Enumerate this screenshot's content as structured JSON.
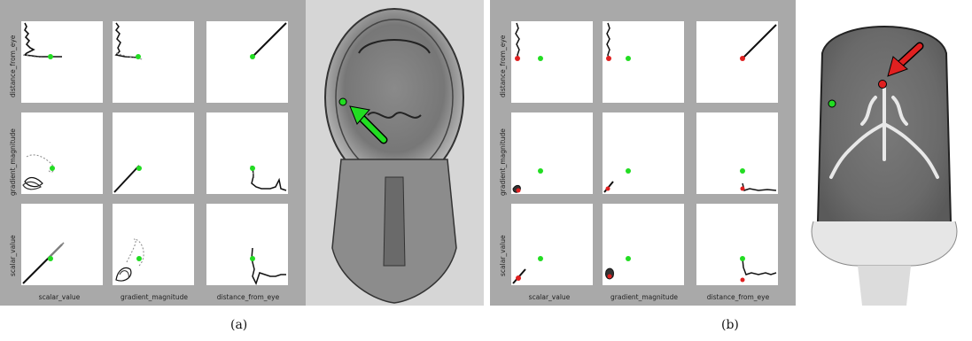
{
  "figure": {
    "panels": [
      {
        "caption": "(a)",
        "axes": [
          "distance_from_eye",
          "gradient_magnitude",
          "scalar_value"
        ],
        "x_axes": [
          "scalar_value",
          "gradient_magnitude",
          "distance_from_eye"
        ],
        "highlight_color": "#22dd22",
        "arrow_color": "#22dd22"
      },
      {
        "caption": "(b)",
        "axes": [
          "distance_from_eye",
          "gradient_magnitude",
          "scalar_value"
        ],
        "x_axes": [
          "scalar_value",
          "gradient_magnitude",
          "distance_from_eye"
        ],
        "highlight_color": "#22dd22",
        "selection_color": "#e02020",
        "arrow_color": "#e02020"
      }
    ],
    "colors": {
      "matrix_background": "#a9a9a9",
      "curve": "#111111",
      "curve_light": "#888888"
    }
  }
}
